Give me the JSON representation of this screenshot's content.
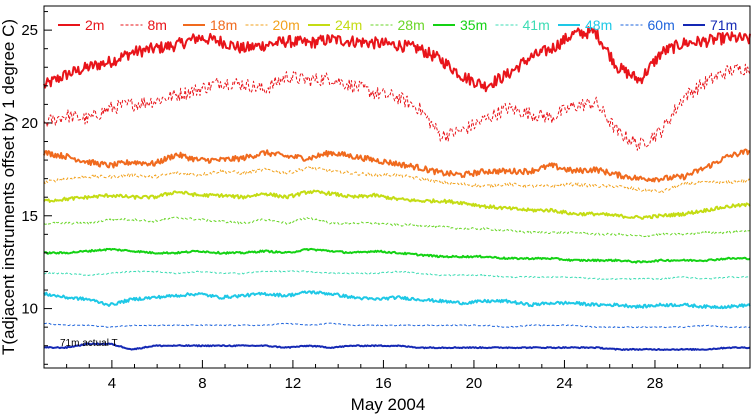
{
  "chart_data": {
    "type": "line",
    "title": "",
    "xlabel": "May 2004",
    "ylabel": "T(adjacent instruments offset by 1 degree C)",
    "xlim": [
      1,
      32.2
    ],
    "ylim": [
      6.8,
      26.3
    ],
    "x_ticks": [
      4,
      8,
      12,
      16,
      20,
      24,
      28
    ],
    "y_ticks": [
      10,
      15,
      20,
      25
    ],
    "annotation": "71m actual T",
    "series": [
      {
        "name": "2m",
        "color": "#e8141a",
        "dash": "solid",
        "width": 2,
        "values": [
          22.0,
          22.6,
          23.0,
          23.3,
          23.8,
          24.0,
          24.2,
          24.6,
          24.4,
          24.0,
          24.2,
          24.4,
          24.3,
          24.5,
          24.4,
          24.3,
          24.2,
          24.0,
          23.4,
          22.5,
          22.0,
          22.6,
          23.5,
          24.0,
          24.8,
          24.9,
          23.0,
          22.3,
          23.8,
          24.3,
          24.4,
          24.6,
          24.5
        ]
      },
      {
        "name": "8m",
        "color": "#e8141a",
        "dash": "dashed",
        "width": 1,
        "values": [
          20.0,
          20.4,
          20.2,
          20.8,
          21.0,
          21.2,
          21.5,
          21.8,
          22.2,
          22.1,
          21.8,
          22.5,
          22.3,
          22.4,
          22.0,
          21.6,
          21.4,
          20.8,
          19.3,
          19.6,
          20.2,
          20.8,
          20.5,
          20.3,
          20.9,
          21.1,
          19.5,
          18.8,
          19.6,
          21.4,
          22.2,
          22.8,
          23.0
        ]
      },
      {
        "name": "18m",
        "color": "#f06a1e",
        "dash": "solid",
        "width": 2,
        "values": [
          18.4,
          18.2,
          17.9,
          17.7,
          17.9,
          17.8,
          18.3,
          18.0,
          18.0,
          18.1,
          18.4,
          18.2,
          18.1,
          18.4,
          18.2,
          18.0,
          17.8,
          17.6,
          17.3,
          17.2,
          17.4,
          17.4,
          17.4,
          17.7,
          17.4,
          17.5,
          17.2,
          17.0,
          17.0,
          17.1,
          17.6,
          18.2,
          18.5
        ]
      },
      {
        "name": "20m",
        "color": "#f2a21e",
        "dash": "dashed",
        "width": 1,
        "values": [
          16.8,
          17.0,
          17.1,
          17.1,
          17.2,
          17.1,
          17.3,
          17.2,
          17.4,
          17.3,
          17.5,
          17.3,
          17.6,
          17.4,
          17.3,
          17.2,
          17.2,
          17.0,
          16.8,
          16.7,
          16.6,
          16.7,
          16.6,
          16.6,
          16.7,
          16.6,
          16.6,
          16.4,
          16.3,
          16.7,
          16.8,
          16.8,
          16.9
        ]
      },
      {
        "name": "24m",
        "color": "#c4dc14",
        "dash": "solid",
        "width": 2,
        "values": [
          15.8,
          15.9,
          16.0,
          16.1,
          16.0,
          16.0,
          16.3,
          16.1,
          16.1,
          16.0,
          16.2,
          16.0,
          16.3,
          16.2,
          16.0,
          16.1,
          15.9,
          15.8,
          15.8,
          15.7,
          15.5,
          15.4,
          15.3,
          15.3,
          15.1,
          15.1,
          15.0,
          14.9,
          15.0,
          15.1,
          15.3,
          15.5,
          15.6
        ]
      },
      {
        "name": "28m",
        "color": "#6ad628",
        "dash": "dashed",
        "width": 1,
        "values": [
          14.6,
          14.6,
          14.6,
          14.8,
          14.8,
          14.7,
          14.9,
          14.8,
          14.7,
          14.6,
          14.8,
          14.6,
          14.9,
          14.6,
          14.6,
          14.6,
          14.5,
          14.5,
          14.4,
          14.3,
          14.3,
          14.2,
          14.1,
          14.1,
          14.1,
          14.0,
          14.0,
          13.9,
          14.0,
          14.0,
          14.1,
          14.1,
          14.2
        ]
      },
      {
        "name": "35m",
        "color": "#14d214",
        "dash": "solid",
        "width": 2,
        "values": [
          13.0,
          13.0,
          13.1,
          13.2,
          13.1,
          13.0,
          13.0,
          13.1,
          13.0,
          13.0,
          13.1,
          13.0,
          13.2,
          13.1,
          13.0,
          13.1,
          13.0,
          12.9,
          12.8,
          12.8,
          12.8,
          12.7,
          12.7,
          12.7,
          12.6,
          12.6,
          12.6,
          12.5,
          12.6,
          12.6,
          12.6,
          12.7,
          12.7
        ]
      },
      {
        "name": "41m",
        "color": "#3cdcb4",
        "dash": "dashed",
        "width": 1,
        "values": [
          11.9,
          11.9,
          11.8,
          11.9,
          12.0,
          12.0,
          11.9,
          12.0,
          11.9,
          11.9,
          12.0,
          12.0,
          12.0,
          11.9,
          11.9,
          11.9,
          12.0,
          11.9,
          11.8,
          11.8,
          11.8,
          11.7,
          11.7,
          11.7,
          11.7,
          11.6,
          11.6,
          11.6,
          11.6,
          11.7,
          11.6,
          11.7,
          11.7
        ]
      },
      {
        "name": "48m",
        "color": "#1ec8e6",
        "dash": "solid",
        "width": 2,
        "values": [
          10.8,
          10.6,
          10.5,
          10.2,
          10.5,
          10.6,
          10.7,
          10.8,
          10.6,
          10.7,
          10.8,
          10.7,
          10.9,
          10.8,
          10.6,
          10.5,
          10.6,
          10.5,
          10.4,
          10.3,
          10.4,
          10.4,
          10.2,
          10.3,
          10.3,
          10.2,
          10.2,
          10.1,
          10.2,
          10.2,
          10.1,
          10.1,
          10.2
        ]
      },
      {
        "name": "60m",
        "color": "#1e64dc",
        "dash": "dashed",
        "width": 1,
        "values": [
          9.2,
          9.1,
          9.1,
          9.0,
          9.1,
          9.1,
          9.1,
          9.1,
          9.1,
          9.1,
          9.1,
          9.2,
          9.1,
          9.2,
          9.1,
          9.1,
          9.1,
          9.1,
          9.1,
          9.1,
          9.1,
          9.0,
          9.1,
          9.1,
          9.1,
          9.0,
          9.0,
          9.0,
          9.0,
          9.0,
          9.1,
          9.0,
          9.0
        ]
      },
      {
        "name": "71m",
        "color": "#1428b4",
        "dash": "solid",
        "width": 2,
        "values": [
          7.9,
          7.9,
          8.1,
          8.1,
          7.8,
          8.0,
          8.0,
          8.0,
          8.0,
          8.0,
          8.0,
          7.9,
          8.0,
          7.9,
          8.0,
          8.0,
          8.0,
          7.9,
          7.9,
          7.9,
          7.9,
          7.9,
          7.9,
          7.9,
          7.9,
          7.9,
          7.8,
          7.8,
          7.8,
          7.8,
          7.8,
          7.9,
          7.9
        ]
      }
    ]
  }
}
